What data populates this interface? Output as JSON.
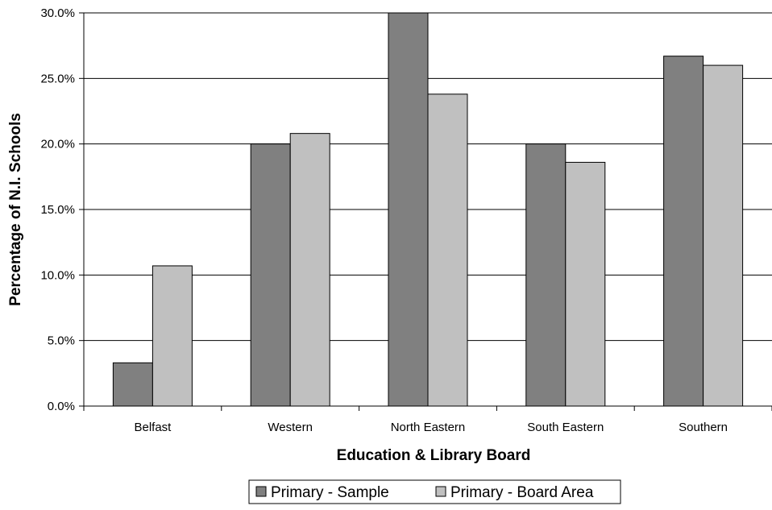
{
  "chart_data": {
    "type": "bar",
    "categories": [
      "Belfast",
      "Western",
      "North Eastern",
      "South Eastern",
      "Southern"
    ],
    "series": [
      {
        "name": "Primary - Sample",
        "values": [
          3.3,
          20.0,
          30.0,
          20.0,
          26.7
        ]
      },
      {
        "name": "Primary - Board Area",
        "values": [
          10.7,
          20.8,
          23.8,
          18.6,
          26.0
        ]
      }
    ],
    "title": "",
    "xlabel": "Education & Library Board",
    "ylabel": "Percentage of N.I. Schools",
    "ylim": [
      0,
      30
    ],
    "yticks": [
      "0.0%",
      "5.0%",
      "10.0%",
      "15.0%",
      "20.0%",
      "25.0%",
      "30.0%"
    ],
    "grid": true,
    "legend_position": "bottom",
    "colors": {
      "series": [
        "#808080",
        "#c0c0c0"
      ],
      "edge": "#000000",
      "grid": "#000000"
    }
  }
}
